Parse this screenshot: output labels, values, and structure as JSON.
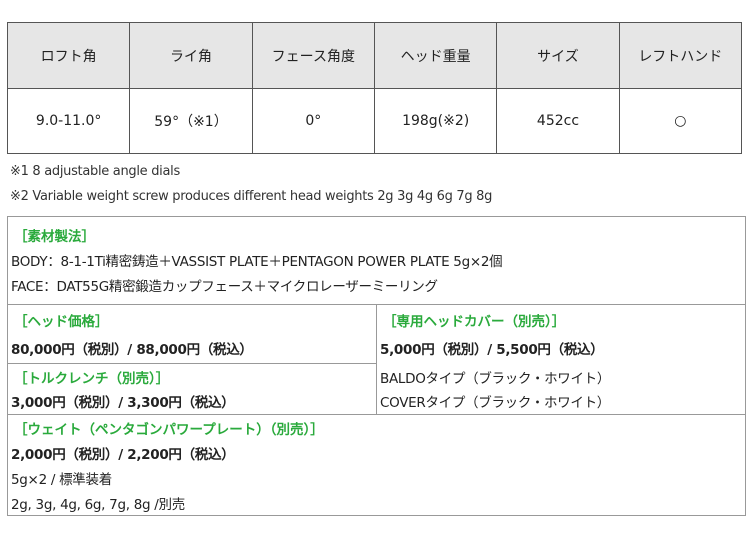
{
  "spec_table": {
    "headers": [
      "ロフト角",
      "ライ角",
      "フェース角度",
      "ヘッド重量",
      "サイズ",
      "レフトハンド"
    ],
    "values": [
      "9.0-11.0°",
      "59°（※1）",
      "0°",
      "198g(※2)",
      "452cc",
      "○"
    ]
  },
  "notes": [
    "※1  8 adjustable angle dials",
    "※2 Variable weight screw produces different head weights 2g 3g 4g 6g 7g 8g"
  ],
  "material": {
    "title": "［素材製法］",
    "body": "BODY：8-1-1Ti精密鋳造＋VASSIST PLATE＋PENTAGON POWER PLATE 5g×2個",
    "face": "FACE：DAT55G精密鍛造カップフェース＋マイクロレーザーミーリング"
  },
  "head_price": {
    "title": "［ヘッド価格］",
    "price": "80,000円（税別）/ 88,000円（税込）"
  },
  "wrench": {
    "title": "［トルクレンチ（別売）］",
    "price": "3,000円（税別）/ 3,300円（税込）"
  },
  "cover": {
    "title": "［専用ヘッドカバー（別売）］",
    "price": "5,000円（税別）/ 5,500円（税込）",
    "types": [
      "BALDOタイプ（ブラック・ホワイト）",
      "COVERタイプ（ブラック・ホワイト）"
    ]
  },
  "weight": {
    "title": "［ウェイト（ペンタゴンパワープレート）（別売）］",
    "price": "2,000円（税別）/ 2,200円（税込）",
    "standard": "5g×2 / 標準装着",
    "options": "2g, 3g, 4g, 6g, 7g, 8g /別売"
  },
  "colors": {
    "accent": "#2aaa3c",
    "header_bg": "#e6e6e6"
  }
}
